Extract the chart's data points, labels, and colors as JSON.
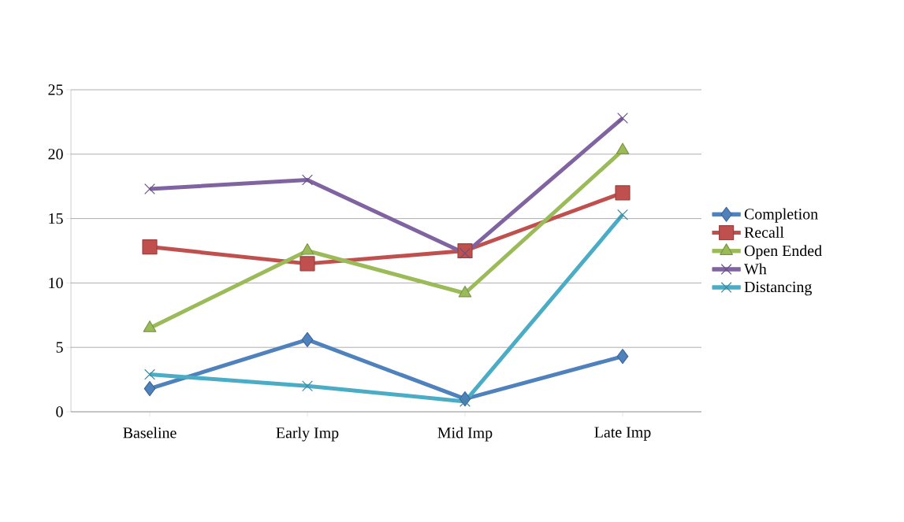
{
  "chart_data": {
    "type": "line",
    "categories": [
      "Baseline",
      "Early Imp",
      "Mid Imp",
      "Late Imp"
    ],
    "series": [
      {
        "name": "Completion",
        "color": "#4f81bd",
        "marker": "diamond",
        "values": [
          1.8,
          5.6,
          1.0,
          4.3
        ]
      },
      {
        "name": "Recall",
        "color": "#c0504d",
        "marker": "square",
        "values": [
          12.8,
          11.5,
          12.5,
          17.0
        ]
      },
      {
        "name": "Open Ended",
        "color": "#9bbb59",
        "marker": "triangle",
        "values": [
          6.5,
          12.5,
          9.2,
          20.3
        ]
      },
      {
        "name": "Wh",
        "color": "#8064a2",
        "marker": "cross",
        "values": [
          17.3,
          18.0,
          12.3,
          22.8
        ]
      },
      {
        "name": "Distancing",
        "color": "#4bacc6",
        "marker": "cross",
        "values": [
          2.9,
          2.0,
          0.8,
          15.3
        ]
      }
    ],
    "ylim": [
      0,
      25
    ],
    "yticks": [
      0,
      5,
      10,
      15,
      20,
      25
    ],
    "grid": "y",
    "legend": "right"
  }
}
